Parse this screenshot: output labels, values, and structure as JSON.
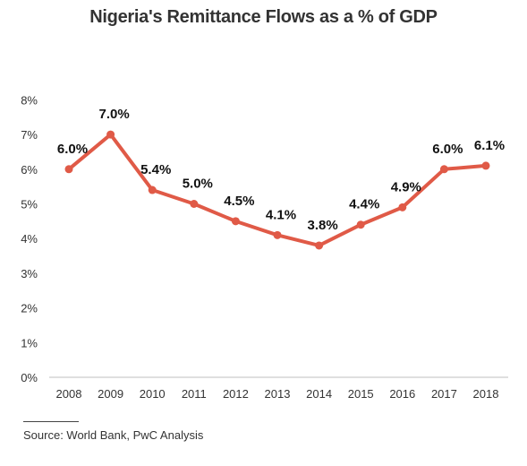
{
  "chart_data": {
    "type": "line",
    "title": "Nigeria's Remittance Flows as a % of GDP",
    "xlabel": "",
    "ylabel": "",
    "x": [
      "2008",
      "2009",
      "2010",
      "2011",
      "2012",
      "2013",
      "2014",
      "2015",
      "2016",
      "2017",
      "2018"
    ],
    "values": [
      6.0,
      7.0,
      5.4,
      5.0,
      4.5,
      4.1,
      3.8,
      4.4,
      4.9,
      6.0,
      6.1
    ],
    "data_labels": [
      "6.0%",
      "7.0%",
      "5.4%",
      "5.0%",
      "4.5%",
      "4.1%",
      "3.8%",
      "4.4%",
      "4.9%",
      "6.0%",
      "6.1%"
    ],
    "y_ticks": [
      0,
      1,
      2,
      3,
      4,
      5,
      6,
      7,
      8
    ],
    "y_tick_labels": [
      "0%",
      "1%",
      "2%",
      "3%",
      "4%",
      "5%",
      "6%",
      "7%",
      "8%"
    ],
    "ylim": [
      0,
      8
    ],
    "grid": false,
    "legend": "none",
    "line_color": "#e05a47"
  },
  "source": "Source: World Bank, PwC Analysis"
}
